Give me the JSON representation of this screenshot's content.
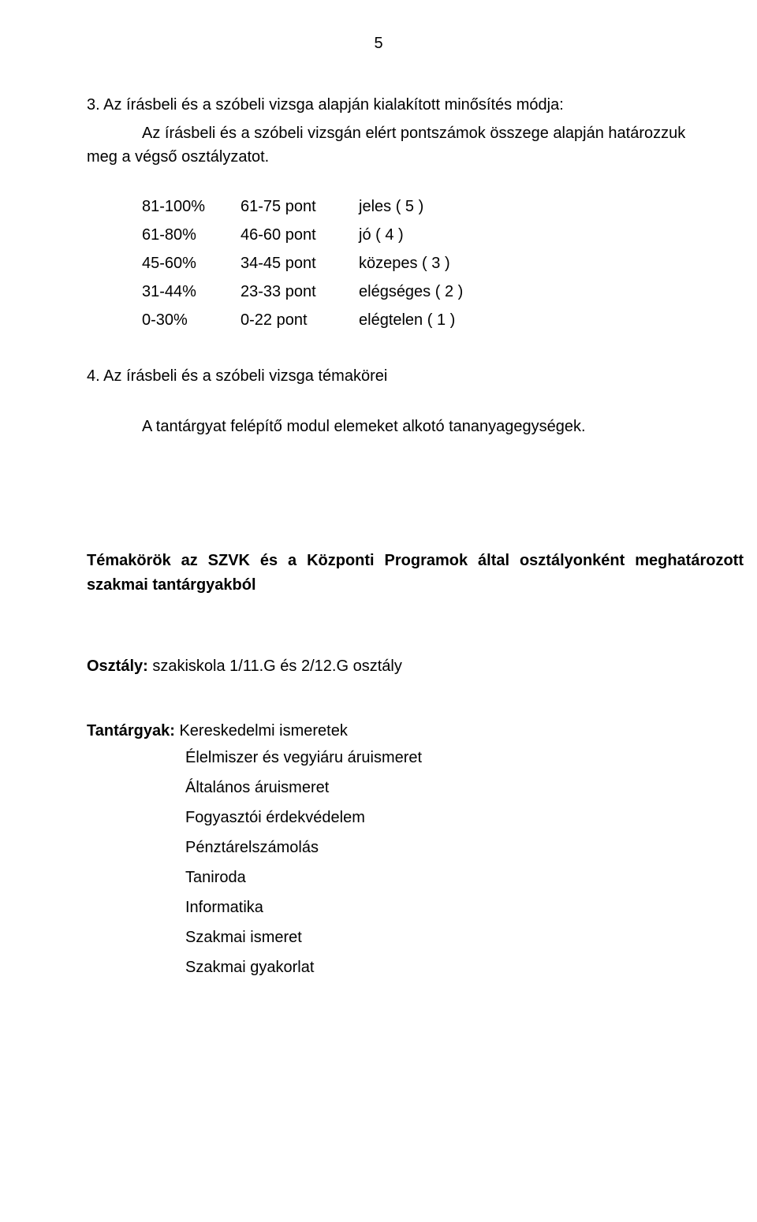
{
  "page_number": "5",
  "section3": {
    "heading": "3. Az írásbeli és a szóbeli vizsga alapján kialakított minősítés módja:",
    "line1": "Az írásbeli és a szóbeli vizsgán elért pontszámok összege alapján határozzuk",
    "line2": "meg a végső osztályzatot."
  },
  "grade_table": {
    "rows": [
      {
        "pct": "81-100%",
        "pts": "61-75 pont",
        "grade": "jeles ( 5 )"
      },
      {
        "pct": "61-80%",
        "pts": "46-60 pont",
        "grade": "jó ( 4 )"
      },
      {
        "pct": "45-60%",
        "pts": "34-45 pont",
        "grade": "közepes ( 3 )"
      },
      {
        "pct": "31-44%",
        "pts": "23-33 pont",
        "grade": "elégséges ( 2 )"
      },
      {
        "pct": "0-30%",
        "pts": "0-22 pont",
        "grade": "elégtelen ( 1 )"
      }
    ]
  },
  "section4": {
    "heading": "4. Az írásbeli és a szóbeli vizsga témakörei",
    "body": "A tantárgyat felépítő modul elemeket alkotó tananyagegységek."
  },
  "topics_heading": "Témakörök az SZVK és a Központi Programok által osztályonként meghatározott szakmai tantárgyakból",
  "class_line": {
    "label": "Osztály:",
    "value": " szakiskola 1/11.G és 2/12.G osztály"
  },
  "subjects": {
    "label": "Tantárgyak:",
    "first": " Kereskedelmi ismeretek",
    "items": [
      "Élelmiszer és vegyiáru áruismeret",
      "Általános áruismeret",
      "Fogyasztói érdekvédelem",
      "Pénztárelszámolás",
      "Taniroda",
      "Informatika",
      "Szakmai ismeret",
      "Szakmai gyakorlat"
    ]
  }
}
